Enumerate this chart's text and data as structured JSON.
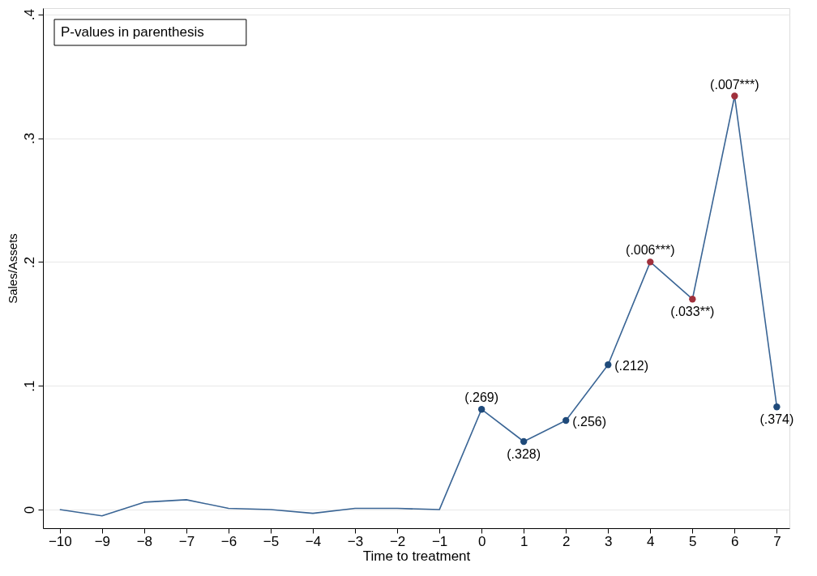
{
  "chart_data": {
    "type": "line",
    "xlabel": "Time to treatment",
    "ylabel": "Sales/Assets",
    "annotations": [
      "P-values in parenthesis",
      {
        "text": "(.269)",
        "x": 0,
        "y": 0.081
      },
      {
        "text": "(.328)",
        "x": 1,
        "y": 0.055
      },
      {
        "text": "(.256)",
        "x": 2,
        "y": 0.072
      },
      {
        "text": "(.212)",
        "x": 3,
        "y": 0.117
      },
      {
        "text": "(.006***)",
        "x": 4,
        "y": 0.2
      },
      {
        "text": "(.033**)",
        "x": 5,
        "y": 0.17
      },
      {
        "text": "(.007***)",
        "x": 6,
        "y": 0.334
      },
      {
        "text": "(.374)",
        "x": 7,
        "y": 0.083
      }
    ],
    "x": [
      -10,
      -9,
      -8,
      -7,
      -6,
      -5,
      -4,
      -3,
      -2,
      -1,
      0,
      1,
      2,
      3,
      4,
      5,
      6,
      7
    ],
    "series": [
      {
        "color": "#3a6595",
        "values": [
          0.0,
          -0.005,
          0.006,
          0.008,
          0.001,
          0.0,
          -0.003,
          0.001,
          0.001,
          0.0,
          0.081,
          0.055,
          0.072,
          0.117,
          0.2,
          0.17,
          0.334,
          0.083
        ]
      },
      {
        "type": "scatter",
        "marker": "circle",
        "x": [
          0,
          1,
          2,
          3,
          4,
          5,
          6,
          7
        ],
        "values": [
          0.081,
          0.055,
          0.072,
          0.117,
          0.2,
          0.17,
          0.334,
          0.083
        ],
        "colors": [
          "#1f4a7a",
          "#1f4a7a",
          "#1f4a7a",
          "#1f4a7a",
          "#a0303c",
          "#a0303c",
          "#a0303c",
          "#1f4a7a"
        ]
      }
    ],
    "xlim": [
      -10.4,
      7.3
    ],
    "xticks": [
      -10,
      -9,
      -8,
      -7,
      -6,
      -5,
      -4,
      -3,
      -2,
      -1,
      0,
      1,
      2,
      3,
      4,
      5,
      6,
      7
    ],
    "ylim": [
      -0.015,
      0.405
    ],
    "yticks": [
      {
        "value": 0,
        "label": "0"
      },
      {
        "value": 0.1,
        "label": ".1"
      },
      {
        "value": 0.2,
        "label": ".2"
      },
      {
        "value": 0.3,
        "label": ".3"
      },
      {
        "value": 0.4,
        "label": ".4"
      }
    ],
    "grid": "y",
    "line_style": "solid"
  }
}
